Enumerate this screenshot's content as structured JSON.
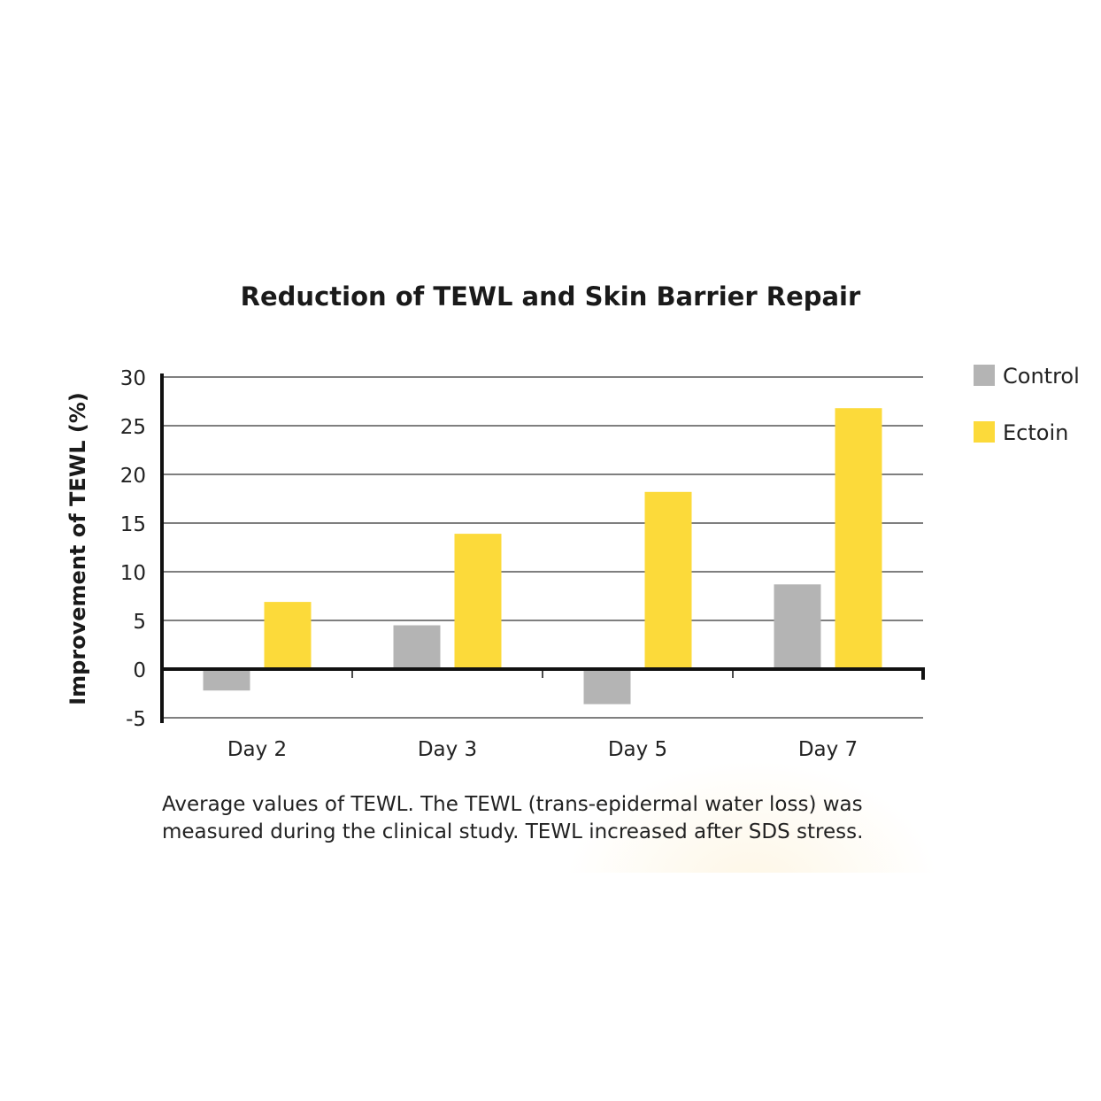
{
  "chart_data": {
    "type": "bar",
    "title": "Reduction of TEWL and Skin Barrier Repair",
    "xlabel": "",
    "ylabel": "Improvement of TEWL (%)",
    "categories": [
      "Day 2",
      "Day 3",
      "Day 5",
      "Day 7"
    ],
    "series": [
      {
        "name": "Control",
        "color": "#b4b4b4",
        "values": [
          -2.2,
          4.5,
          -3.6,
          8.7
        ]
      },
      {
        "name": "Ectoin",
        "color": "#fcda3a",
        "values": [
          6.9,
          13.9,
          18.2,
          26.8
        ]
      }
    ],
    "ylim": [
      -5,
      30
    ],
    "yticks": [
      "-5",
      "0",
      "5",
      "10",
      "15",
      "20",
      "25",
      "30"
    ],
    "grid": true,
    "legend_position": "right"
  },
  "caption": {
    "line1": "Average values of TEWL. The TEWL (trans-epidermal water loss) was",
    "line2": "measured during the clinical study. TEWL increased after SDS stress."
  }
}
